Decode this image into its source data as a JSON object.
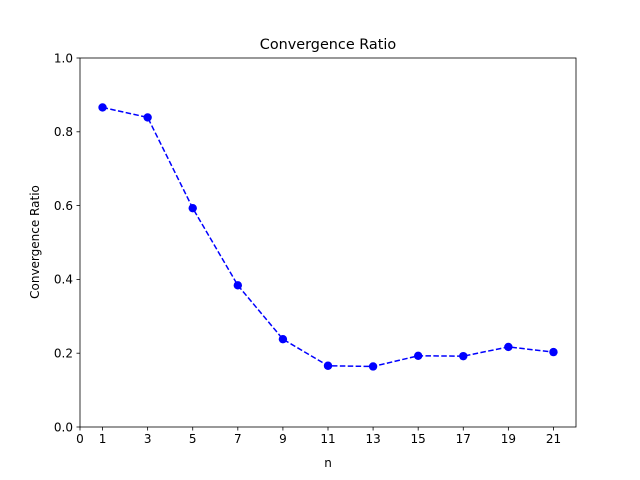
{
  "chart_data": {
    "type": "line",
    "title": "Convergence Ratio",
    "xlabel": "n",
    "ylabel": "Convergence Ratio",
    "xlim": [
      0,
      22
    ],
    "ylim": [
      0.0,
      1.0
    ],
    "xticks": [
      0,
      1,
      3,
      5,
      7,
      9,
      11,
      13,
      15,
      17,
      19,
      21
    ],
    "xtick_labels": [
      "0",
      "1",
      "3",
      "5",
      "7",
      "9",
      "11",
      "13",
      "15",
      "17",
      "19",
      "21"
    ],
    "yticks": [
      0.0,
      0.2,
      0.4,
      0.6,
      0.8,
      1.0
    ],
    "ytick_labels": [
      "0.0",
      "0.2",
      "0.4",
      "0.6",
      "0.8",
      "1.0"
    ],
    "grid": false,
    "series": [
      {
        "color": "#0000ff",
        "line_style": "dashed",
        "marker": "circle",
        "x": [
          1,
          3,
          5,
          7,
          9,
          11,
          13,
          15,
          17,
          19,
          21
        ],
        "y": [
          0.866,
          0.839,
          0.593,
          0.384,
          0.238,
          0.166,
          0.164,
          0.193,
          0.192,
          0.217,
          0.203
        ]
      }
    ]
  }
}
